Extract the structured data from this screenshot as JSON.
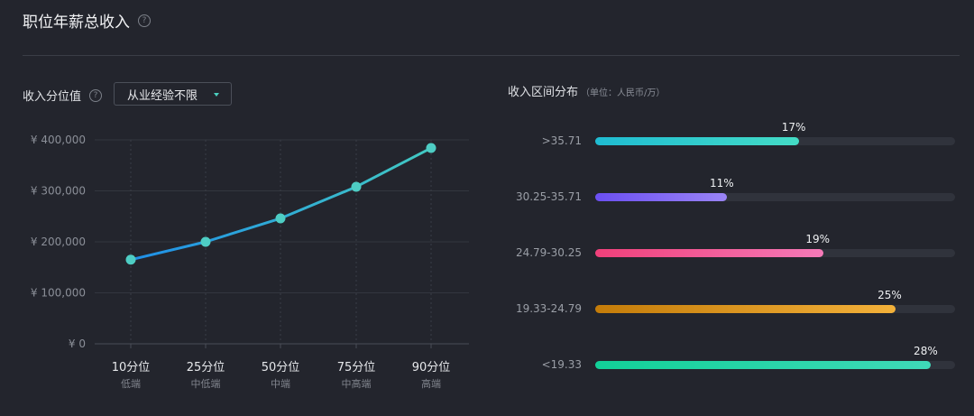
{
  "header": {
    "title": "职位年薪总收入",
    "help_icon": "question-circle-icon",
    "help_glyph": "?"
  },
  "controls": {
    "percentile_label": "收入分位值",
    "percentile_help_glyph": "?",
    "experience_dropdown": {
      "value": "从业经验不限"
    }
  },
  "distribution": {
    "title": "收入区间分布",
    "unit": "（单位：人民币/万）"
  },
  "chart_data": [
    {
      "type": "line",
      "x": [
        "10分位",
        "25分位",
        "50分位",
        "75分位",
        "90分位"
      ],
      "x_sublabels": [
        "低端",
        "中低端",
        "中端",
        "中高端",
        "高端"
      ],
      "values": [
        165000,
        200000,
        246000,
        308000,
        384000
      ],
      "ylim": [
        0,
        400000
      ],
      "yticks": [
        0,
        100000,
        200000,
        300000,
        400000
      ],
      "ytick_labels": [
        "¥ 0",
        "¥ 100,000",
        "¥ 200,000",
        "¥ 300,000",
        "¥ 400,000"
      ],
      "grid": "horizontal",
      "colors": {
        "line_start": "#1f8fe8",
        "line_end": "#42c9c2",
        "point": "#4ecdc4"
      }
    },
    {
      "type": "bar",
      "orientation": "horizontal",
      "categories": [
        ">35.71",
        "30.25-35.71",
        "24.79-30.25",
        "19.33-24.79",
        "<19.33"
      ],
      "values": [
        17,
        11,
        19,
        25,
        28
      ],
      "labels": [
        "17%",
        "11%",
        "19%",
        "25%",
        "28%"
      ],
      "xlim": [
        0,
        30
      ],
      "colors": [
        [
          "#1fbcd2",
          "#44dcc6"
        ],
        [
          "#6b4ff2",
          "#9a84f5"
        ],
        [
          "#f0407a",
          "#f57ab8"
        ],
        [
          "#c47c09",
          "#f3b13a"
        ],
        [
          "#12d098",
          "#3fd9b8"
        ]
      ]
    }
  ]
}
